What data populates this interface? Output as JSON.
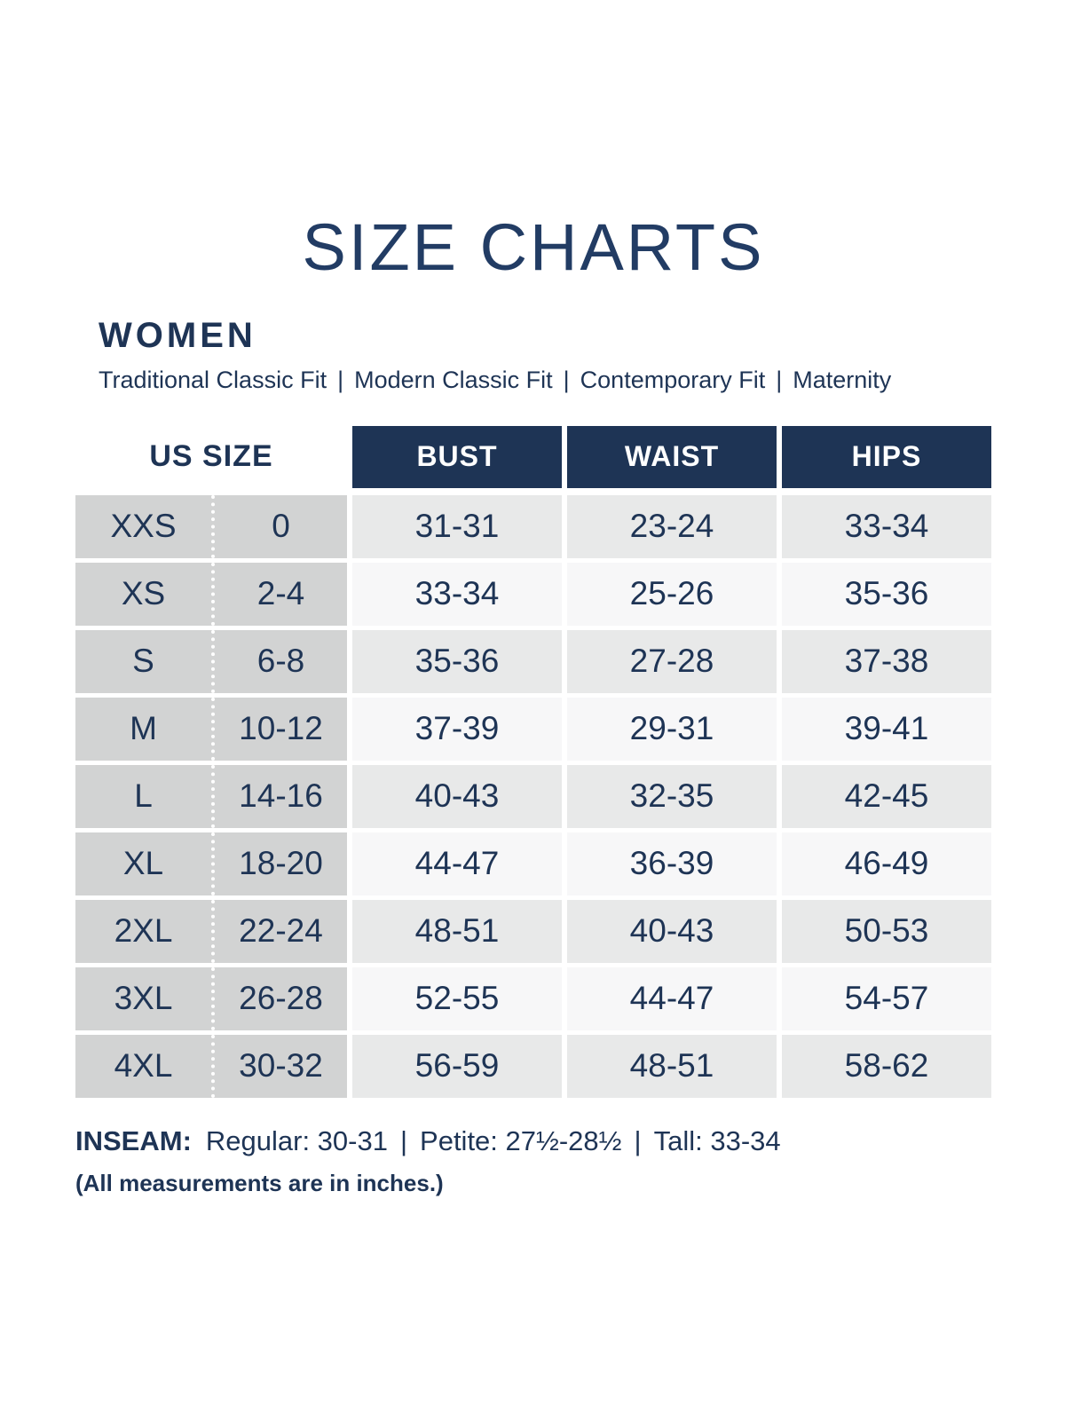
{
  "title": "SIZE CHARTS",
  "section": {
    "heading": "WOMEN",
    "fits": [
      "Traditional Classic Fit",
      "Modern Classic Fit",
      "Contemporary Fit",
      "Maternity"
    ],
    "fit_separator": "|"
  },
  "table": {
    "size_header": "US SIZE",
    "columns": [
      "BUST",
      "WAIST",
      "HIPS"
    ],
    "rows": [
      {
        "size": "XXS",
        "us": "0",
        "bust": "31-31",
        "waist": "23-24",
        "hips": "33-34"
      },
      {
        "size": "XS",
        "us": "2-4",
        "bust": "33-34",
        "waist": "25-26",
        "hips": "35-36"
      },
      {
        "size": "S",
        "us": "6-8",
        "bust": "35-36",
        "waist": "27-28",
        "hips": "37-38"
      },
      {
        "size": "M",
        "us": "10-12",
        "bust": "37-39",
        "waist": "29-31",
        "hips": "39-41"
      },
      {
        "size": "L",
        "us": "14-16",
        "bust": "40-43",
        "waist": "32-35",
        "hips": "42-45"
      },
      {
        "size": "XL",
        "us": "18-20",
        "bust": "44-47",
        "waist": "36-39",
        "hips": "46-49"
      },
      {
        "size": "2XL",
        "us": "22-24",
        "bust": "48-51",
        "waist": "40-43",
        "hips": "50-53"
      },
      {
        "size": "3XL",
        "us": "26-28",
        "bust": "52-55",
        "waist": "44-47",
        "hips": "54-57"
      },
      {
        "size": "4XL",
        "us": "30-32",
        "bust": "56-59",
        "waist": "48-51",
        "hips": "58-62"
      }
    ]
  },
  "inseam": {
    "label": "INSEAM:",
    "segments": [
      "Regular: 30-31",
      "Petite: 27½-28½",
      "Tall: 33-34"
    ],
    "separator": "|"
  },
  "units_note": "(All measurements are in inches.)",
  "colors": {
    "navy": "#1e3455",
    "title_navy": "#223c64",
    "size_column_gray": "#d2d3d3",
    "stripe_gray": "#e8e9e9",
    "stripe_white": "#f7f7f8",
    "header_text": "#ffffff"
  }
}
